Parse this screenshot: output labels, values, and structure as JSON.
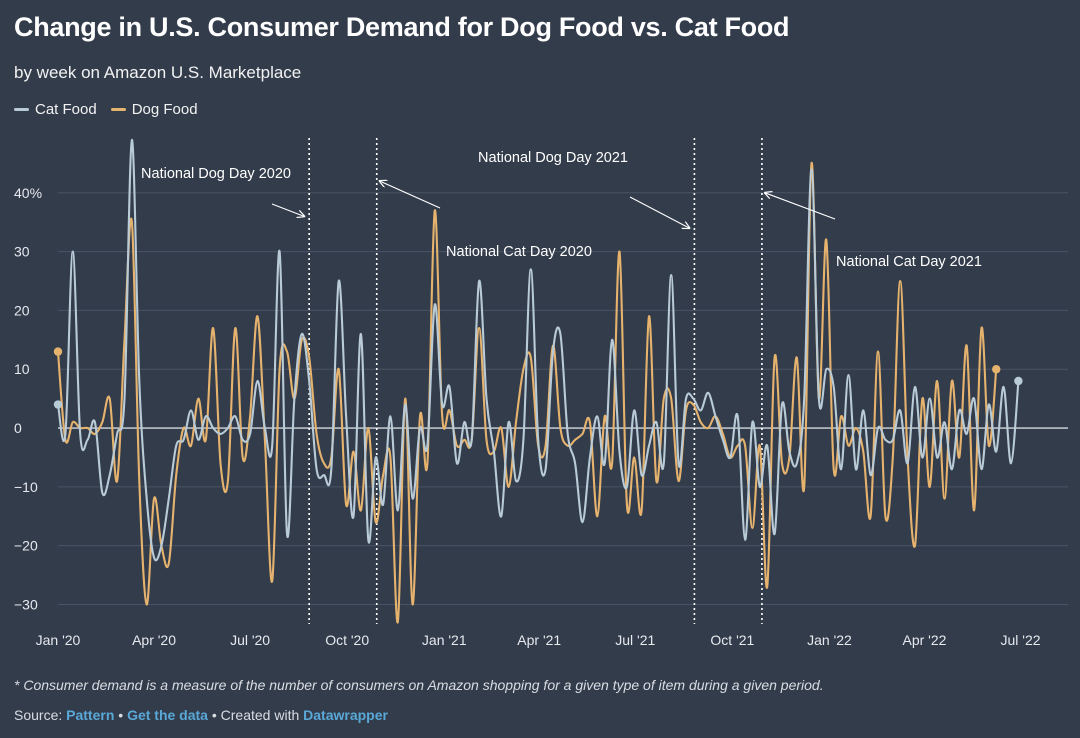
{
  "colors": {
    "background": "#333c4b",
    "cat": "#b8cbd6",
    "dog": "#e6b36e",
    "grid": "#4a5365",
    "zero": "#d5d9df",
    "link": "#59a8d8"
  },
  "header": {
    "title": "Change in U.S. Consumer Demand for Dog Food vs. Cat Food",
    "subtitle": "by week on Amazon U.S. Marketplace"
  },
  "legend": [
    {
      "name": "Cat Food"
    },
    {
      "name": "Dog Food"
    }
  ],
  "footer": {
    "footnote": "* Consumer demand is a measure of the number of consumers on Amazon shopping for a given type of item during a given period.",
    "source_prefix": "Source:",
    "source_link": "Pattern",
    "sep1": "•",
    "data_link": "Get the data",
    "sep2": "• Created with",
    "tool_link": "Datawrapper"
  },
  "chart_data": {
    "type": "line",
    "title": "Change in U.S. Consumer Demand for Dog Food vs. Cat Food",
    "subtitle": "by week on Amazon U.S. Marketplace",
    "xlabel": "",
    "ylabel": "",
    "y_unit": "%",
    "ylim": [
      -34,
      50
    ],
    "xlim": [
      "2020-01-01",
      "2022-08-15"
    ],
    "y_ticks": [
      -30,
      -20,
      -10,
      0,
      10,
      20,
      30,
      40
    ],
    "y_tick_labels": [
      "−30",
      "−20",
      "−10",
      "0",
      "10",
      "20",
      "30",
      "40%"
    ],
    "x_ticks": [
      {
        "date": "2020-01-01",
        "label": "Jan '20"
      },
      {
        "date": "2020-04-01",
        "label": "Apr '20"
      },
      {
        "date": "2020-07-01",
        "label": "Jul '20"
      },
      {
        "date": "2020-10-01",
        "label": "Oct '20"
      },
      {
        "date": "2021-01-01",
        "label": "Jan '21"
      },
      {
        "date": "2021-04-01",
        "label": "Apr '21"
      },
      {
        "date": "2021-07-01",
        "label": "Jul '21"
      },
      {
        "date": "2021-10-01",
        "label": "Oct '21"
      },
      {
        "date": "2022-01-01",
        "label": "Jan '22"
      },
      {
        "date": "2022-04-01",
        "label": "Apr '22"
      },
      {
        "date": "2022-07-01",
        "label": "Jul '22"
      }
    ],
    "grid": true,
    "legend_position": "top-left",
    "event_lines": [
      {
        "date": "2020-08-26",
        "label": "National Dog Day 2020"
      },
      {
        "date": "2020-10-29",
        "label": "National Cat Day 2020"
      },
      {
        "date": "2021-08-26",
        "label": "National Dog Day 2021"
      },
      {
        "date": "2021-10-29",
        "label": "National Cat Day 2021"
      }
    ],
    "series": [
      {
        "name": "Cat Food",
        "points": [
          [
            "2020-01-01",
            4
          ],
          [
            "2020-01-08",
            -1
          ],
          [
            "2020-01-15",
            30
          ],
          [
            "2020-01-22",
            -1
          ],
          [
            "2020-01-29",
            -2
          ],
          [
            "2020-02-05",
            1
          ],
          [
            "2020-02-12",
            -11
          ],
          [
            "2020-02-19",
            -8
          ],
          [
            "2020-02-26",
            -1
          ],
          [
            "2020-03-04",
            5
          ],
          [
            "2020-03-11",
            49
          ],
          [
            "2020-03-18",
            8
          ],
          [
            "2020-03-25",
            -12
          ],
          [
            "2020-04-01",
            -22
          ],
          [
            "2020-04-08",
            -20
          ],
          [
            "2020-04-15",
            -12
          ],
          [
            "2020-04-22",
            -3
          ],
          [
            "2020-04-29",
            -2
          ],
          [
            "2020-05-06",
            3
          ],
          [
            "2020-05-13",
            -2
          ],
          [
            "2020-05-20",
            2
          ],
          [
            "2020-05-27",
            0
          ],
          [
            "2020-06-03",
            -1
          ],
          [
            "2020-06-10",
            0
          ],
          [
            "2020-06-17",
            2
          ],
          [
            "2020-06-24",
            -2
          ],
          [
            "2020-07-01",
            -1
          ],
          [
            "2020-07-08",
            8
          ],
          [
            "2020-07-15",
            0
          ],
          [
            "2020-07-22",
            -3
          ],
          [
            "2020-07-29",
            30
          ],
          [
            "2020-08-05",
            -18
          ],
          [
            "2020-08-12",
            5
          ],
          [
            "2020-08-19",
            16
          ],
          [
            "2020-08-26",
            8
          ],
          [
            "2020-09-02",
            -7
          ],
          [
            "2020-09-09",
            -8
          ],
          [
            "2020-09-16",
            -7
          ],
          [
            "2020-09-23",
            25
          ],
          [
            "2020-09-30",
            2
          ],
          [
            "2020-10-07",
            -15
          ],
          [
            "2020-10-14",
            16
          ],
          [
            "2020-10-21",
            -19
          ],
          [
            "2020-10-28",
            -5
          ],
          [
            "2020-11-04",
            -13
          ],
          [
            "2020-11-11",
            2
          ],
          [
            "2020-11-18",
            -14
          ],
          [
            "2020-11-25",
            4
          ],
          [
            "2020-12-02",
            -12
          ],
          [
            "2020-12-09",
            0
          ],
          [
            "2020-12-16",
            -3
          ],
          [
            "2020-12-23",
            21
          ],
          [
            "2020-12-30",
            4
          ],
          [
            "2021-01-06",
            7
          ],
          [
            "2021-01-13",
            -6
          ],
          [
            "2021-01-20",
            1
          ],
          [
            "2021-01-27",
            -2
          ],
          [
            "2021-02-03",
            25
          ],
          [
            "2021-02-10",
            5
          ],
          [
            "2021-02-17",
            -4
          ],
          [
            "2021-02-24",
            -15
          ],
          [
            "2021-03-03",
            1
          ],
          [
            "2021-03-10",
            -9
          ],
          [
            "2021-03-17",
            -2
          ],
          [
            "2021-03-24",
            27
          ],
          [
            "2021-03-31",
            -2
          ],
          [
            "2021-04-07",
            -7
          ],
          [
            "2021-04-14",
            13
          ],
          [
            "2021-04-21",
            16
          ],
          [
            "2021-04-28",
            -1
          ],
          [
            "2021-05-05",
            -6
          ],
          [
            "2021-05-12",
            -16
          ],
          [
            "2021-05-19",
            -5
          ],
          [
            "2021-05-26",
            2
          ],
          [
            "2021-06-02",
            -6
          ],
          [
            "2021-06-09",
            15
          ],
          [
            "2021-06-16",
            -4
          ],
          [
            "2021-06-23",
            -10
          ],
          [
            "2021-06-30",
            3
          ],
          [
            "2021-07-07",
            -8
          ],
          [
            "2021-07-14",
            -3
          ],
          [
            "2021-07-21",
            1
          ],
          [
            "2021-07-28",
            -6
          ],
          [
            "2021-08-04",
            26
          ],
          [
            "2021-08-11",
            -6
          ],
          [
            "2021-08-18",
            5
          ],
          [
            "2021-08-25",
            5
          ],
          [
            "2021-09-01",
            3
          ],
          [
            "2021-09-08",
            6
          ],
          [
            "2021-09-15",
            2
          ],
          [
            "2021-09-22",
            -2
          ],
          [
            "2021-09-29",
            -5
          ],
          [
            "2021-10-06",
            2
          ],
          [
            "2021-10-13",
            -19
          ],
          [
            "2021-10-20",
            1
          ],
          [
            "2021-10-27",
            -10
          ],
          [
            "2021-11-03",
            -3
          ],
          [
            "2021-11-10",
            -18
          ],
          [
            "2021-11-17",
            4
          ],
          [
            "2021-11-24",
            -4
          ],
          [
            "2021-12-01",
            -6
          ],
          [
            "2021-12-08",
            5
          ],
          [
            "2021-12-15",
            44
          ],
          [
            "2021-12-22",
            5
          ],
          [
            "2021-12-29",
            10
          ],
          [
            "2022-01-05",
            7
          ],
          [
            "2022-01-12",
            -7
          ],
          [
            "2022-01-19",
            9
          ],
          [
            "2022-01-26",
            -7
          ],
          [
            "2022-02-02",
            3
          ],
          [
            "2022-02-09",
            -8
          ],
          [
            "2022-02-16",
            0
          ],
          [
            "2022-02-23",
            -2
          ],
          [
            "2022-03-02",
            -2
          ],
          [
            "2022-03-09",
            3
          ],
          [
            "2022-03-16",
            -6
          ],
          [
            "2022-03-23",
            7
          ],
          [
            "2022-03-30",
            -5
          ],
          [
            "2022-04-06",
            5
          ],
          [
            "2022-04-13",
            -5
          ],
          [
            "2022-04-20",
            1
          ],
          [
            "2022-04-27",
            -7
          ],
          [
            "2022-05-04",
            3
          ],
          [
            "2022-05-11",
            -1
          ],
          [
            "2022-05-18",
            5
          ],
          [
            "2022-05-25",
            -7
          ],
          [
            "2022-06-01",
            4
          ],
          [
            "2022-06-08",
            -4
          ],
          [
            "2022-06-15",
            7
          ],
          [
            "2022-06-22",
            -6
          ],
          [
            "2022-06-29",
            8
          ]
        ]
      },
      {
        "name": "Dog Food",
        "points": [
          [
            "2020-01-01",
            13
          ],
          [
            "2020-01-08",
            -2
          ],
          [
            "2020-01-15",
            1
          ],
          [
            "2020-01-22",
            0
          ],
          [
            "2020-01-29",
            0
          ],
          [
            "2020-02-05",
            -1
          ],
          [
            "2020-02-12",
            1
          ],
          [
            "2020-02-19",
            5
          ],
          [
            "2020-02-26",
            -9
          ],
          [
            "2020-03-04",
            15
          ],
          [
            "2020-03-11",
            35
          ],
          [
            "2020-03-18",
            -9
          ],
          [
            "2020-03-25",
            -30
          ],
          [
            "2020-04-01",
            -12
          ],
          [
            "2020-04-08",
            -20
          ],
          [
            "2020-04-15",
            -23
          ],
          [
            "2020-04-22",
            -8
          ],
          [
            "2020-04-29",
            0
          ],
          [
            "2020-05-06",
            -3
          ],
          [
            "2020-05-13",
            5
          ],
          [
            "2020-05-20",
            -2
          ],
          [
            "2020-05-27",
            17
          ],
          [
            "2020-06-03",
            -6
          ],
          [
            "2020-06-10",
            -9
          ],
          [
            "2020-06-17",
            17
          ],
          [
            "2020-06-24",
            -5
          ],
          [
            "2020-07-01",
            2
          ],
          [
            "2020-07-08",
            19
          ],
          [
            "2020-07-15",
            -2
          ],
          [
            "2020-07-22",
            -26
          ],
          [
            "2020-07-29",
            10
          ],
          [
            "2020-08-05",
            13
          ],
          [
            "2020-08-12",
            5
          ],
          [
            "2020-08-19",
            15
          ],
          [
            "2020-08-26",
            12
          ],
          [
            "2020-09-02",
            -1
          ],
          [
            "2020-09-09",
            -6
          ],
          [
            "2020-09-16",
            -5
          ],
          [
            "2020-09-23",
            10
          ],
          [
            "2020-09-30",
            -13
          ],
          [
            "2020-10-07",
            -4
          ],
          [
            "2020-10-14",
            -14
          ],
          [
            "2020-10-21",
            0
          ],
          [
            "2020-10-28",
            -16
          ],
          [
            "2020-11-04",
            -8
          ],
          [
            "2020-11-11",
            -5
          ],
          [
            "2020-11-18",
            -33
          ],
          [
            "2020-11-25",
            5
          ],
          [
            "2020-12-02",
            -30
          ],
          [
            "2020-12-09",
            2
          ],
          [
            "2020-12-16",
            -6
          ],
          [
            "2020-12-23",
            37
          ],
          [
            "2020-12-30",
            2
          ],
          [
            "2021-01-06",
            3
          ],
          [
            "2021-01-13",
            -3
          ],
          [
            "2021-01-20",
            -2
          ],
          [
            "2021-01-27",
            -2
          ],
          [
            "2021-02-03",
            17
          ],
          [
            "2021-02-10",
            -2
          ],
          [
            "2021-02-17",
            -4
          ],
          [
            "2021-02-24",
            0
          ],
          [
            "2021-03-03",
            -10
          ],
          [
            "2021-03-10",
            1
          ],
          [
            "2021-03-17",
            10
          ],
          [
            "2021-03-24",
            12
          ],
          [
            "2021-03-31",
            -3
          ],
          [
            "2021-04-07",
            -3
          ],
          [
            "2021-04-14",
            14
          ],
          [
            "2021-04-21",
            0
          ],
          [
            "2021-04-28",
            -3
          ],
          [
            "2021-05-05",
            -2
          ],
          [
            "2021-05-12",
            -1
          ],
          [
            "2021-05-19",
            1
          ],
          [
            "2021-05-26",
            -15
          ],
          [
            "2021-06-02",
            2
          ],
          [
            "2021-06-09",
            -6
          ],
          [
            "2021-06-16",
            30
          ],
          [
            "2021-06-23",
            -13
          ],
          [
            "2021-06-30",
            -5
          ],
          [
            "2021-07-07",
            -14
          ],
          [
            "2021-07-14",
            19
          ],
          [
            "2021-07-21",
            -9
          ],
          [
            "2021-07-28",
            5
          ],
          [
            "2021-08-04",
            5
          ],
          [
            "2021-08-11",
            -9
          ],
          [
            "2021-08-18",
            3
          ],
          [
            "2021-08-25",
            4
          ],
          [
            "2021-09-01",
            1
          ],
          [
            "2021-09-08",
            0
          ],
          [
            "2021-09-15",
            2
          ],
          [
            "2021-09-22",
            -1
          ],
          [
            "2021-09-29",
            -5
          ],
          [
            "2021-10-06",
            -3
          ],
          [
            "2021-10-13",
            -3
          ],
          [
            "2021-10-20",
            -17
          ],
          [
            "2021-10-27",
            -3
          ],
          [
            "2021-11-03",
            -27
          ],
          [
            "2021-11-10",
            12
          ],
          [
            "2021-11-17",
            -6
          ],
          [
            "2021-11-24",
            -5
          ],
          [
            "2021-12-01",
            12
          ],
          [
            "2021-12-08",
            -10
          ],
          [
            "2021-12-15",
            45
          ],
          [
            "2021-12-22",
            5
          ],
          [
            "2021-12-29",
            32
          ],
          [
            "2022-01-05",
            -7
          ],
          [
            "2022-01-12",
            2
          ],
          [
            "2022-01-19",
            -3
          ],
          [
            "2022-01-26",
            0
          ],
          [
            "2022-02-02",
            -4
          ],
          [
            "2022-02-09",
            -15
          ],
          [
            "2022-02-16",
            13
          ],
          [
            "2022-02-23",
            -15
          ],
          [
            "2022-03-02",
            -5
          ],
          [
            "2022-03-09",
            25
          ],
          [
            "2022-03-16",
            -5
          ],
          [
            "2022-03-23",
            -20
          ],
          [
            "2022-03-30",
            5
          ],
          [
            "2022-04-06",
            -10
          ],
          [
            "2022-04-13",
            8
          ],
          [
            "2022-04-20",
            -12
          ],
          [
            "2022-04-27",
            8
          ],
          [
            "2022-05-04",
            -5
          ],
          [
            "2022-05-11",
            14
          ],
          [
            "2022-05-18",
            -14
          ],
          [
            "2022-05-25",
            17
          ],
          [
            "2022-06-01",
            -3
          ],
          [
            "2022-06-08",
            10
          ]
        ]
      }
    ]
  }
}
